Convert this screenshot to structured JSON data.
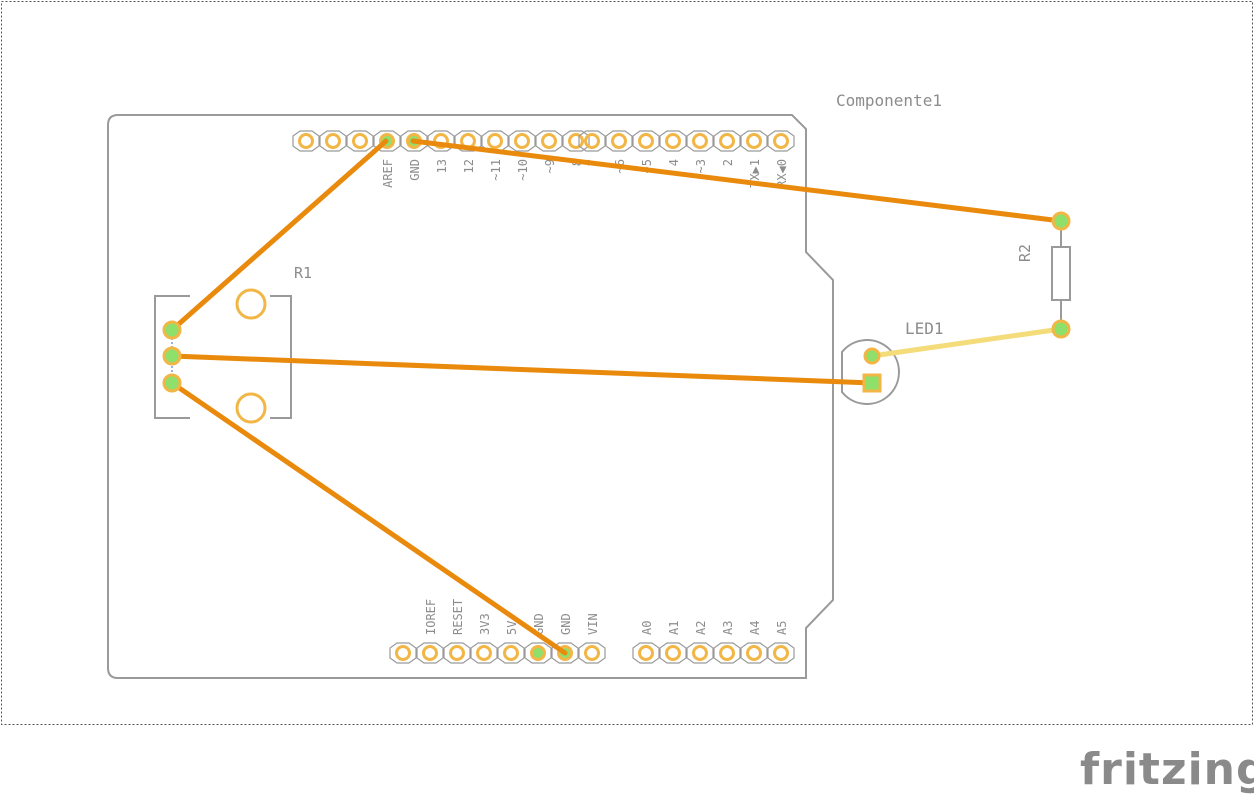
{
  "labels": {
    "module": "Componente1",
    "r1": "R1",
    "r2": "R2",
    "led1": "LED1",
    "brand": "fritzing"
  },
  "header_top_left": [
    "",
    "",
    "",
    "AREF",
    "GND",
    "13",
    "12",
    "~11",
    "~10",
    "~9",
    "8"
  ],
  "header_top_right": [
    "7",
    "~6",
    "~5",
    "4",
    "~3",
    "2",
    "TX▶1",
    "RX◀0"
  ],
  "header_bottom_power": [
    "",
    "IOREF",
    "RESET",
    "3V3",
    "5V",
    "GND",
    "GND",
    "VIN"
  ],
  "header_bottom_analog": [
    "A0",
    "A1",
    "A2",
    "A3",
    "A4",
    "A5"
  ],
  "connected_pins": {
    "top_left": [
      3,
      4
    ],
    "bottom_power": [
      5,
      6
    ]
  },
  "colors": {
    "board_outline": "#9a9a9a",
    "silkscreen": "#8c8c8c",
    "pad": "#f2b646",
    "pad_connected": "#8ee06a",
    "trace_bottom": "#e98a0c",
    "trace_top": "#f4dc7a"
  }
}
